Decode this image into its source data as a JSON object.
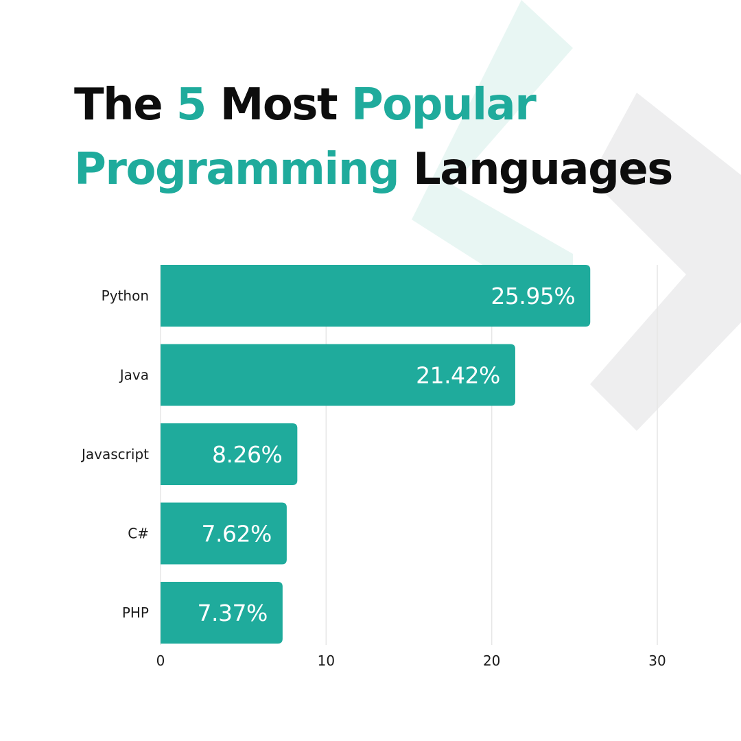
{
  "title": {
    "line1": [
      "The",
      "5",
      "Most",
      "Popular"
    ],
    "line2": [
      "Programming",
      "Languages"
    ]
  },
  "colors": {
    "accent": "#1fab9c",
    "bar": "#1fab9c",
    "text": "#0d0d0d",
    "grid": "#e6e6e6",
    "decoration_teal": "#e8f6f3",
    "decoration_gray": "#eeeeef"
  },
  "chart_data": {
    "type": "bar",
    "orientation": "horizontal",
    "categories": [
      "Python",
      "Java",
      "Javascript",
      "C#",
      "PHP"
    ],
    "values": [
      25.95,
      21.42,
      8.26,
      7.62,
      7.37
    ],
    "value_labels": [
      "25.95%",
      "21.42%",
      "8.26%",
      "7.62%",
      "7.37%"
    ],
    "xlim": [
      0,
      30
    ],
    "xticks": [
      0,
      10,
      20,
      30
    ],
    "xlabel": "",
    "ylabel": "",
    "grid": "vertical",
    "legend": "none"
  }
}
